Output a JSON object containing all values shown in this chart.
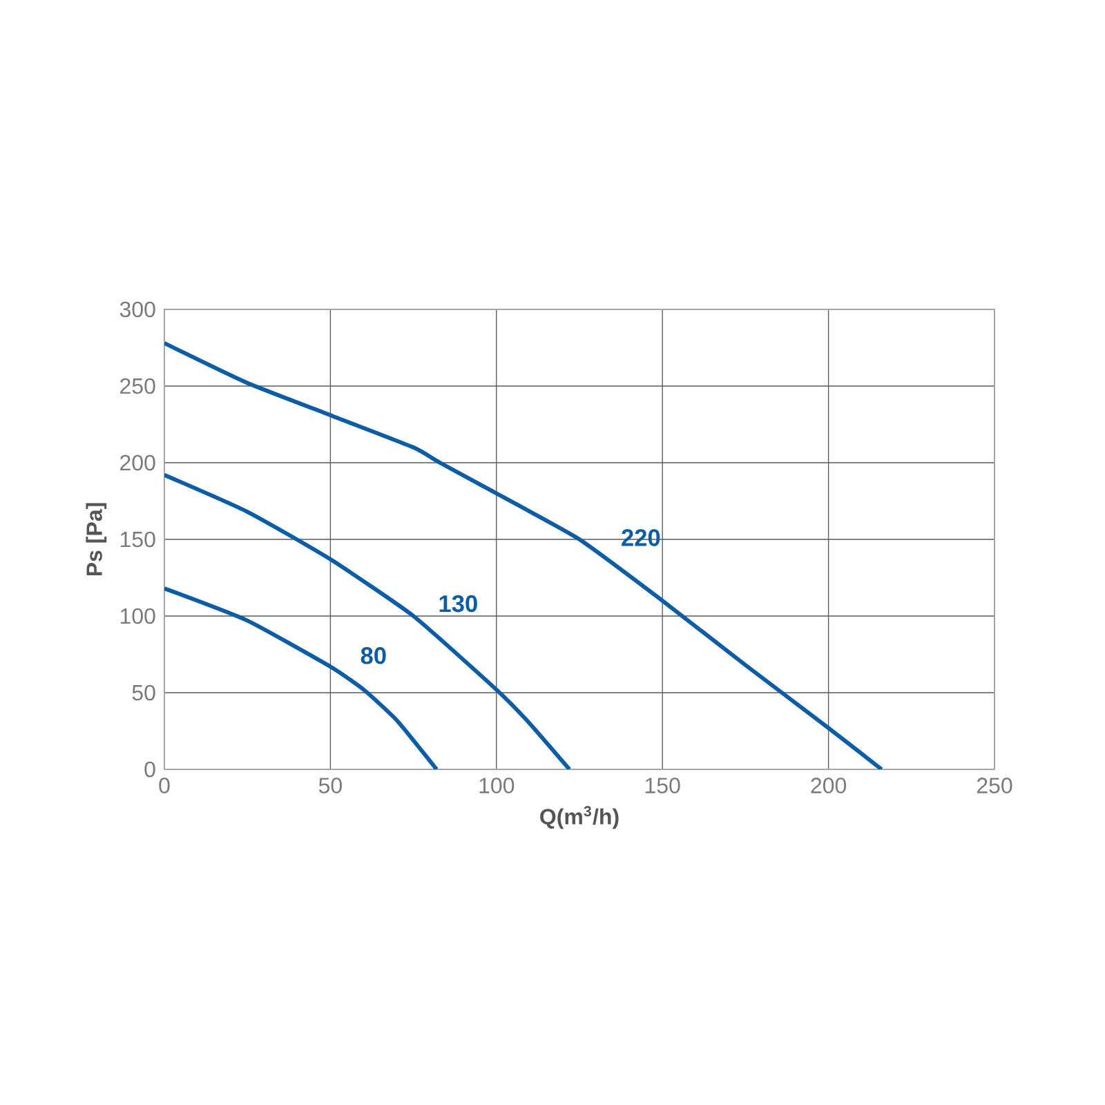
{
  "chart_data": {
    "type": "line",
    "xlabel": "Q(m$^{3}$/h)",
    "ylabel": "Ps [Pa]",
    "xlim": [
      0,
      250
    ],
    "ylim": [
      0,
      300
    ],
    "xticks": [
      0,
      50,
      100,
      150,
      200,
      250
    ],
    "yticks": [
      0,
      50,
      100,
      150,
      200,
      250,
      300
    ],
    "grid": true,
    "marker": "none",
    "line_style": "solid",
    "series": [
      {
        "name": "80",
        "color": "#0d5ca6",
        "x": [
          0,
          25,
          50,
          60,
          70,
          82
        ],
        "values": [
          118,
          97,
          67,
          52,
          32,
          0
        ]
      },
      {
        "name": "130",
        "color": "#0d5ca6",
        "x": [
          0,
          25,
          50,
          75,
          100,
          110,
          122
        ],
        "values": [
          192,
          168,
          137,
          100,
          52,
          30,
          0
        ]
      },
      {
        "name": "220",
        "color": "#0d5ca6",
        "x": [
          0,
          25,
          50,
          75,
          83,
          100,
          125,
          150,
          175,
          200,
          216
        ],
        "values": [
          278,
          252,
          231,
          210,
          200,
          180,
          150,
          110,
          68,
          27,
          0
        ]
      }
    ]
  }
}
